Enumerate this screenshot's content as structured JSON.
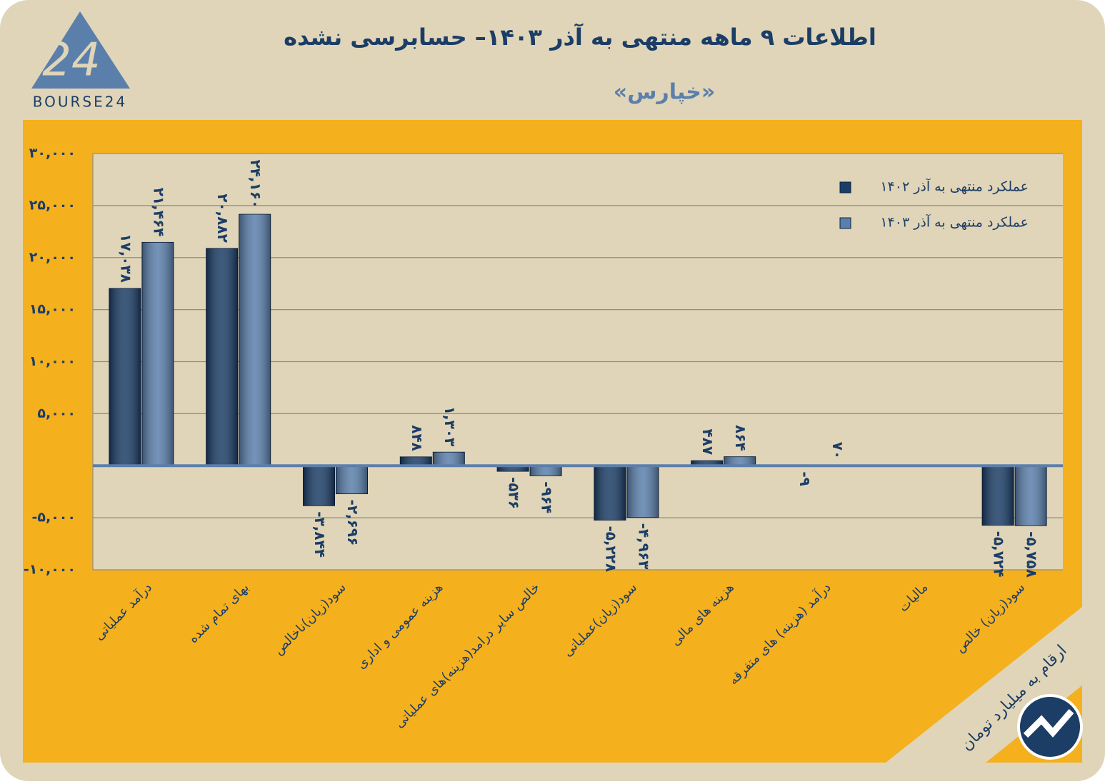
{
  "logo": "BOURSE24",
  "note": "ارقام به میلیارد تومان",
  "chart_data": {
    "type": "bar",
    "title": "اطلاعات ۹ ماهه منتهی به آذر ۱۴۰۳– حسابرسی نشده",
    "subtitle": "«خپارس»",
    "categories": [
      "درآمد عملیاتی",
      "بهای تمام شده",
      "سود(زیان)ناخالص",
      "هزینه عمومی و اداری",
      "خالص سایر درامد(هزینه)های عملیاتی",
      "سود(زیان)عملیاتی",
      "هزینه های مالی",
      "درآمد (هزینه) های متفرقه",
      "مالیات",
      "سود(زیان) خالص"
    ],
    "series": [
      {
        "name": "عملکرد منتهی به آذر ۱۴۰۲",
        "color": "#1b3d66",
        "values": [
          17038,
          20882,
          -3844,
          848,
          -536,
          -5228,
          487,
          -9,
          null,
          -5724
        ],
        "value_labels": [
          "۱۷,۰۳۸",
          "۲۰,۸۸۲",
          "-۳,۸۴۴",
          "۸۴۸",
          "-۵۳۶",
          "-۵,۲۲۸",
          "۴۸۷",
          "-۹",
          null,
          "-۵,۷۲۴"
        ]
      },
      {
        "name": "عملکرد منتهی به آذر ۱۴۰۳",
        "color": "#5a7fab",
        "values": [
          21464,
          24160,
          -2696,
          1303,
          -964,
          -4963,
          864,
          70,
          null,
          -5758
        ],
        "value_labels": [
          "۲۱,۴۶۴",
          "۲۴,۱۶۰",
          "-۲,۶۹۶",
          "۱,۳۰۳",
          "-۹۶۴",
          "-۴,۹۶۳",
          "۸۶۴",
          "۷۰",
          null,
          "-۵,۷۵۸"
        ]
      }
    ],
    "ylim": [
      -10000,
      30000
    ],
    "yticks": [
      {
        "value": 30000,
        "label": "۳۰,۰۰۰"
      },
      {
        "value": 25000,
        "label": "۲۵,۰۰۰"
      },
      {
        "value": 20000,
        "label": "۲۰,۰۰۰"
      },
      {
        "value": 15000,
        "label": "۱۵,۰۰۰"
      },
      {
        "value": 10000,
        "label": "۱۰,۰۰۰"
      },
      {
        "value": 5000,
        "label": "۵,۰۰۰"
      },
      {
        "value": -5000,
        "label": "-۵,۰۰۰"
      },
      {
        "value": -10000,
        "label": "-۱۰,۰۰۰"
      }
    ],
    "grid": true,
    "legend": "top-right"
  }
}
